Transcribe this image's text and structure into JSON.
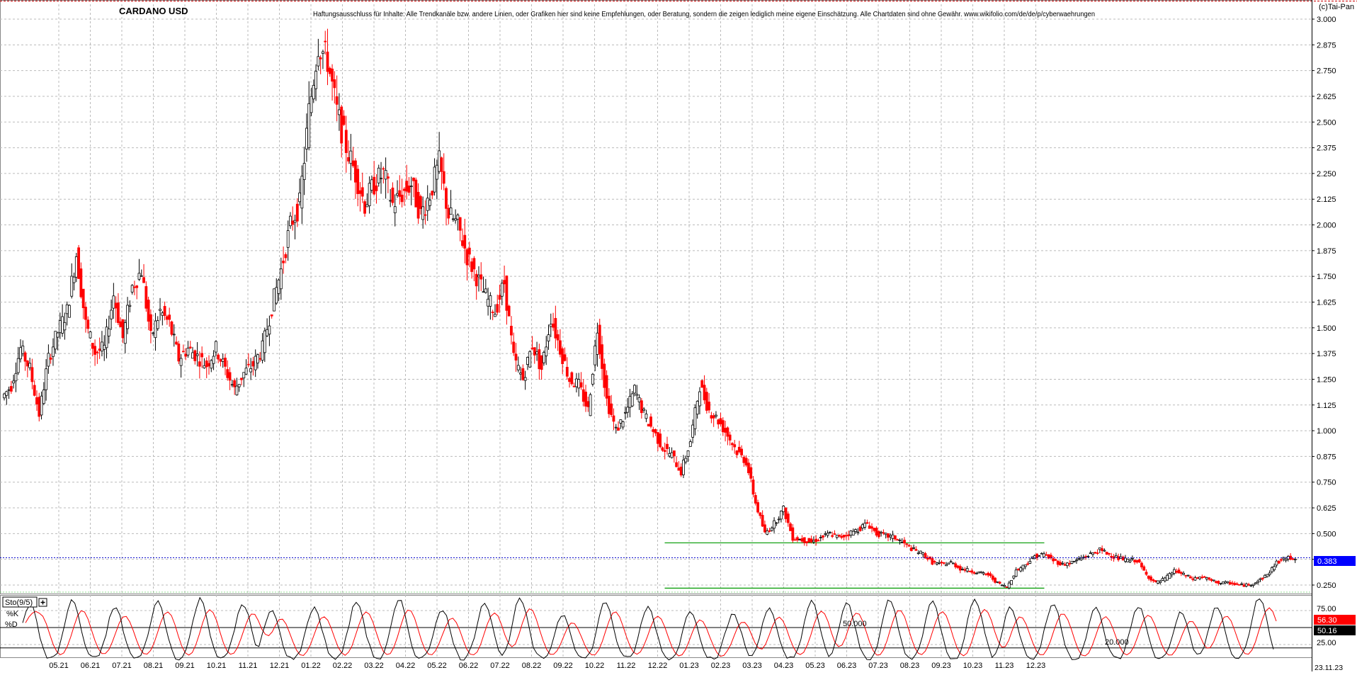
{
  "chart_data": [
    {
      "type": "candlestick",
      "title": "CARDANO USD",
      "disclaimer": "Haftungsausschluss für Inhalte: Alle Trendkanäle bzw. andere Linien, oder Grafiken hier sind keine Empfehlungen, oder Beratung, sondern die zeigen lediglich meine eigene Einschätzung. Alle Chartdaten sind ohne Gewähr.  www.wikifolio.com/de/de/p/cyberwaehrungen",
      "copyright": "(c)Tai-Pan",
      "last_price_label": "0.383",
      "last_price": 0.383,
      "ylim": [
        0.2,
        3.08
      ],
      "yticks": [
        "3.000",
        "2.875",
        "2.750",
        "2.625",
        "2.500",
        "2.375",
        "2.250",
        "2.125",
        "2.000",
        "1.875",
        "1.750",
        "1.625",
        "1.500",
        "1.375",
        "1.250",
        "1.125",
        "1.000",
        "0.875",
        "0.750",
        "0.625",
        "0.500",
        "0.375",
        "0.250"
      ],
      "x_labels": [
        "05.21",
        "06.21",
        "07.21",
        "08.21",
        "09.21",
        "10.21",
        "11.21",
        "12.21",
        "01.22",
        "02.22",
        "03.22",
        "04.22",
        "05.22",
        "06.22",
        "07.22",
        "08.22",
        "09.22",
        "10.22",
        "11.22",
        "12.22",
        "01.23",
        "02.23",
        "03.23",
        "04.23",
        "05.23",
        "06.23",
        "07.23",
        "08.23",
        "09.23",
        "10.23",
        "11.23",
        "12.23"
      ],
      "date_label": "23.11.23",
      "closes": [
        1.16,
        1.22,
        1.4,
        1.3,
        1.08,
        1.35,
        1.48,
        1.58,
        1.86,
        1.52,
        1.38,
        1.4,
        1.66,
        1.45,
        1.7,
        1.78,
        1.45,
        1.58,
        1.52,
        1.35,
        1.4,
        1.36,
        1.32,
        1.4,
        1.3,
        1.2,
        1.28,
        1.32,
        1.4,
        1.6,
        1.78,
        2.0,
        2.1,
        2.55,
        2.88,
        2.8,
        2.55,
        2.38,
        2.25,
        2.1,
        2.2,
        2.25,
        2.1,
        2.15,
        2.2,
        2.05,
        2.15,
        2.3,
        2.05,
        2.0,
        1.85,
        1.75,
        1.65,
        1.58,
        1.72,
        1.35,
        1.25,
        1.42,
        1.3,
        1.55,
        1.4,
        1.25,
        1.22,
        1.1,
        1.5,
        1.15,
        1.0,
        1.08,
        1.2,
        1.08,
        1.0,
        0.92,
        0.88,
        0.8,
        0.95,
        1.22,
        1.1,
        1.05,
        0.98,
        0.9,
        0.85,
        0.65,
        0.5,
        0.55,
        0.62,
        0.48,
        0.47,
        0.46,
        0.48,
        0.5,
        0.48,
        0.5,
        0.52,
        0.55,
        0.5,
        0.49,
        0.48,
        0.45,
        0.42,
        0.4,
        0.36,
        0.35,
        0.36,
        0.33,
        0.32,
        0.31,
        0.3,
        0.26,
        0.24,
        0.32,
        0.35,
        0.39,
        0.4,
        0.37,
        0.35,
        0.36,
        0.38,
        0.4,
        0.42,
        0.4,
        0.38,
        0.37,
        0.37,
        0.3,
        0.26,
        0.28,
        0.32,
        0.3,
        0.28,
        0.29,
        0.27,
        0.26,
        0.26,
        0.25,
        0.25,
        0.27,
        0.3,
        0.36,
        0.38,
        0.383
      ],
      "trendlines": [
        {
          "from_label": "12.22",
          "to_label": "12.23",
          "value": 0.455
        },
        {
          "from_label": "12.22",
          "to_label": "12.23",
          "value": 0.235
        }
      ],
      "colors": {
        "up": "#000000",
        "down": "#ff0000",
        "trend": "#009900",
        "price_line": "#0000cc",
        "price_box": "#0000ff",
        "grid": "#bbbbbb"
      }
    },
    {
      "type": "line",
      "title": "Sto(9/5)",
      "series": [
        {
          "name": "%K",
          "color": "#000000"
        },
        {
          "name": "%D",
          "color": "#ff0000"
        }
      ],
      "ylim": [
        0,
        100
      ],
      "yticks": [
        "75.00",
        "25.00"
      ],
      "levels": [
        {
          "value": 50,
          "label": "50.000"
        },
        {
          "value": 20,
          "label": "20.000"
        }
      ],
      "last_values": {
        "D_label": "56.30",
        "K_label": "50.16"
      },
      "k_cycle_centers": [
        0.5,
        3.5,
        6.5,
        9.5,
        12.5,
        15.5,
        17.5,
        20.5,
        23.5,
        26.5,
        29.5,
        32.5,
        35,
        38,
        41,
        44,
        47,
        50,
        52.5,
        55.5,
        58,
        61,
        64,
        67,
        69.5,
        72.5,
        75.5,
        78.5,
        81.5,
        84,
        87
      ],
      "k_cycle_levels": [
        85,
        90,
        80,
        88,
        92,
        85,
        75,
        80,
        88,
        90,
        78,
        88,
        92,
        70,
        88,
        80,
        75,
        70,
        78,
        88,
        85,
        90,
        88,
        92,
        80,
        85,
        78,
        82,
        72,
        80,
        95
      ]
    }
  ]
}
